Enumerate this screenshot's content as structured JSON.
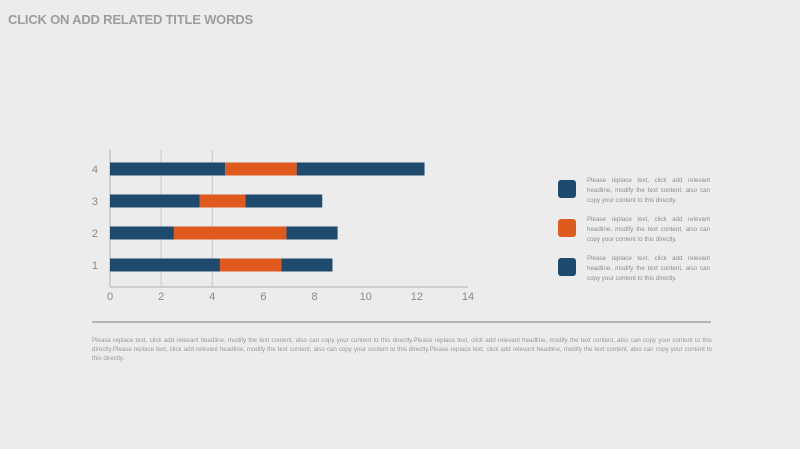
{
  "page": {
    "title": "CLICK ON ADD RELATED TITLE WORDS"
  },
  "chart_data": {
    "type": "bar",
    "orientation": "horizontal",
    "stacked": true,
    "categories": [
      "1",
      "2",
      "3",
      "4"
    ],
    "series": [
      {
        "values": [
          4.3,
          2.5,
          3.5,
          4.5
        ]
      },
      {
        "values": [
          2.4,
          4.4,
          1.8,
          2.8
        ]
      },
      {
        "values": [
          2.0,
          2.0,
          3.0,
          5.0
        ]
      }
    ],
    "xticks": [
      "0",
      "2",
      "4",
      "6",
      "8",
      "10",
      "12",
      "14"
    ],
    "xlim": [
      0,
      14
    ],
    "grid": "vertical",
    "colors": [
      "#1e4a6e",
      "#e05a1e",
      "#1e4a6e"
    ]
  },
  "legend": {
    "items": [
      {
        "color": "#1e4a6e",
        "text": "Please replace text, click add relevant headline, modify the text content, also can copy your content to this directly."
      },
      {
        "color": "#e05a1e",
        "text": "Please replace text, click add relevant headline, modify the text content, also can copy your content to this directly."
      },
      {
        "color": "#1e4a6e",
        "text": "Please replace text, click add relevant headline, modify the text content, also can copy your content to this directly."
      }
    ]
  },
  "body": {
    "text": "Please replace text, click add relevant headline, modify the text content, also can copy your content to this directly.Please replace text, click add relevant headline, modify the text content, also can copy your content to this directly.Please replace text, click add relevant headline, modify the text content, also can copy your content to this directly.Please replace text, click add relevant headline, modify the text content, also can copy your content to this directly."
  }
}
